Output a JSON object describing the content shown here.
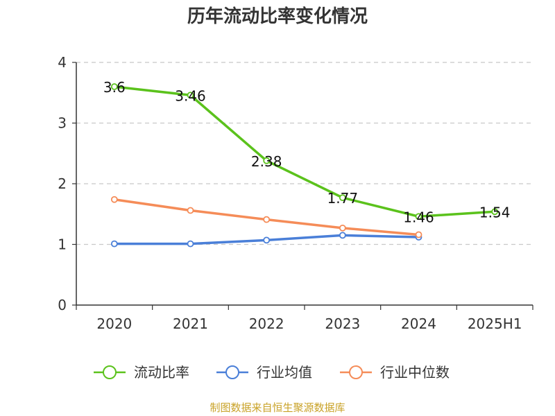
{
  "title": "历年流动比率变化情况",
  "source": "制图数据来自恒生聚源数据库",
  "chart_data": {
    "type": "line",
    "categories": [
      "2020",
      "2021",
      "2022",
      "2023",
      "2024",
      "2025H1"
    ],
    "ylim": [
      0,
      4
    ],
    "yticks": [
      0,
      1,
      2,
      3,
      4
    ],
    "grid": true,
    "legend_position": "bottom",
    "series": [
      {
        "name": "流动比率",
        "color": "#5bc21c",
        "values": [
          3.6,
          3.46,
          2.38,
          1.77,
          1.46,
          1.54
        ],
        "labels": [
          "3.6",
          "3.46",
          "2.38",
          "1.77",
          "1.46",
          "1.54"
        ]
      },
      {
        "name": "行业均值",
        "color": "#4a7fd8",
        "values": [
          1.01,
          1.01,
          1.07,
          1.15,
          1.12,
          null
        ],
        "labels": null
      },
      {
        "name": "行业中位数",
        "color": "#f58c58",
        "values": [
          1.74,
          1.56,
          1.41,
          1.27,
          1.16,
          null
        ],
        "labels": null
      }
    ]
  }
}
